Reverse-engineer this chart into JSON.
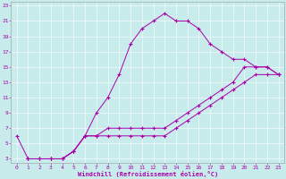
{
  "xlabel": "Windchill (Refroidissement éolien,°C)",
  "bg_color": "#c8ecec",
  "line_color": "#aa00aa",
  "xlim": [
    -0.5,
    23.5
  ],
  "ylim": [
    2.5,
    23.5
  ],
  "xticks": [
    0,
    1,
    2,
    3,
    4,
    5,
    6,
    7,
    8,
    9,
    10,
    11,
    12,
    13,
    14,
    15,
    16,
    17,
    18,
    19,
    20,
    21,
    22,
    23
  ],
  "yticks": [
    3,
    5,
    7,
    9,
    11,
    13,
    15,
    17,
    19,
    21,
    23
  ],
  "curve1_x": [
    0,
    1,
    2,
    3,
    4,
    5,
    6,
    7,
    8,
    9,
    10,
    11,
    12,
    13,
    14,
    15,
    16,
    17,
    18,
    19,
    20,
    21,
    22,
    23
  ],
  "curve1_y": [
    6,
    3,
    3,
    3,
    3,
    4,
    6,
    9,
    11,
    14,
    18,
    20,
    21,
    22,
    21,
    21,
    20,
    18,
    17,
    16,
    16,
    15,
    15,
    14
  ],
  "curve2_x": [
    1,
    2,
    3,
    4,
    5,
    6,
    7,
    8,
    9,
    10,
    11,
    12,
    13,
    14,
    15,
    16,
    17,
    18,
    19,
    20,
    21,
    22,
    23
  ],
  "curve2_y": [
    3,
    3,
    3,
    3,
    4,
    6,
    6,
    7,
    7,
    7,
    7,
    7,
    7,
    8,
    9,
    10,
    11,
    12,
    13,
    15,
    15,
    15,
    14
  ],
  "curve3_x": [
    1,
    2,
    3,
    4,
    5,
    6,
    7,
    8,
    9,
    10,
    11,
    12,
    13,
    14,
    15,
    16,
    17,
    18,
    19,
    20,
    21,
    22,
    23
  ],
  "curve3_y": [
    3,
    3,
    3,
    3,
    4,
    6,
    6,
    6,
    6,
    6,
    6,
    6,
    6,
    7,
    8,
    9,
    10,
    11,
    12,
    13,
    14,
    14,
    14
  ]
}
